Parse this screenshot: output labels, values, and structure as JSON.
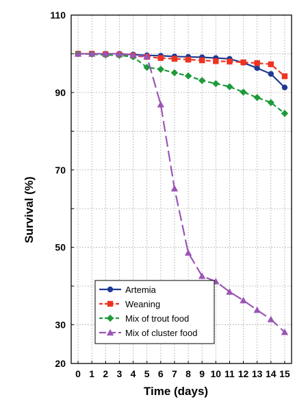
{
  "chart_data": {
    "type": "line",
    "title": "",
    "xlabel": "Time (days)",
    "ylabel": "Survival (%)",
    "x": [
      0,
      1,
      2,
      3,
      4,
      5,
      6,
      7,
      8,
      9,
      10,
      11,
      12,
      13,
      14,
      15
    ],
    "x_tick_labels": [
      "0",
      "1",
      "2",
      "3",
      "4",
      "5",
      "6",
      "7",
      "8",
      "9",
      "10",
      "11",
      "12",
      "13",
      "14",
      "15"
    ],
    "xlim": [
      -0.5,
      15.5
    ],
    "ylim": [
      20,
      110
    ],
    "y_ticks": [
      20,
      30,
      50,
      70,
      90,
      110
    ],
    "y_tick_labels": [
      "20",
      "30",
      "50",
      "70",
      "90",
      "110"
    ],
    "grid": true,
    "legend_position": "bottom-left",
    "series": [
      {
        "name": "Artemia",
        "color": "#1f3a93",
        "marker": "circle",
        "line_style": "solid",
        "x": [
          0,
          1,
          2,
          3,
          4,
          5,
          6,
          7,
          8,
          9,
          10,
          11,
          12,
          13,
          14,
          15
        ],
        "values": [
          100,
          100,
          100,
          100,
          99.8,
          99.6,
          99.5,
          99.3,
          99.2,
          99.1,
          98.9,
          98.7,
          97.7,
          96.3,
          94.8,
          91.3
        ]
      },
      {
        "name": "Weaning",
        "color": "#ee3322",
        "marker": "square",
        "line_style": "dashed",
        "x": [
          0,
          1,
          2,
          3,
          4,
          5,
          6,
          7,
          8,
          9,
          10,
          11,
          12,
          13,
          14,
          15
        ],
        "values": [
          100,
          100,
          99.9,
          99.8,
          99.5,
          99.2,
          98.9,
          98.7,
          98.5,
          98.3,
          98.1,
          98.0,
          97.8,
          97.6,
          97.3,
          94.2
        ]
      },
      {
        "name": "Mix of trout food",
        "color": "#1e9a3a",
        "marker": "diamond",
        "line_style": "dashed",
        "x": [
          0,
          1,
          2,
          3,
          4,
          5,
          6,
          7,
          8,
          9,
          10,
          11,
          12,
          13,
          14,
          15
        ],
        "values": [
          100,
          99.9,
          99.7,
          99.6,
          99.2,
          96.5,
          96.0,
          95.1,
          94.3,
          93.1,
          92.3,
          91.5,
          90.1,
          88.7,
          87.4,
          84.6
        ]
      },
      {
        "name": "Mix of cluster food",
        "color": "#9a55b5",
        "marker": "triangle",
        "line_style": "longdash",
        "x": [
          0,
          1,
          2,
          3,
          4,
          5,
          6,
          7,
          8,
          9,
          10,
          11,
          12,
          13,
          14,
          15
        ],
        "values": [
          100,
          100,
          100,
          100,
          99.7,
          99.3,
          86.9,
          65.2,
          48.6,
          42.6,
          41.2,
          38.5,
          36.3,
          33.8,
          31.4,
          28.1
        ]
      }
    ]
  }
}
